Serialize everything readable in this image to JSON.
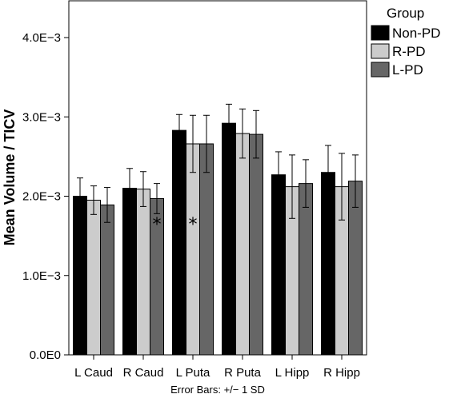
{
  "chart_data": {
    "type": "bar",
    "categories": [
      "L Caud",
      "R Caud",
      "L Puta",
      "R Puta",
      "L Hipp",
      "R Hipp"
    ],
    "series": [
      {
        "name": "Non-PD",
        "color": "#000000",
        "values": [
          0.002,
          0.0021,
          0.00283,
          0.00292,
          0.00227,
          0.0023
        ],
        "sd": [
          0.00023,
          0.00025,
          0.0002,
          0.00024,
          0.00029,
          0.00034
        ]
      },
      {
        "name": "R-PD",
        "color": "#cccccc",
        "values": [
          0.00195,
          0.00209,
          0.00266,
          0.00279,
          0.00212,
          0.00212
        ],
        "sd": [
          0.00018,
          0.00022,
          0.00036,
          0.00031,
          0.0004,
          0.00042
        ]
      },
      {
        "name": "L-PD",
        "color": "#666666",
        "values": [
          0.00189,
          0.00197,
          0.00266,
          0.00278,
          0.00216,
          0.00219
        ],
        "sd": [
          0.00022,
          0.00019,
          0.00036,
          0.0003,
          0.0003,
          0.00033
        ]
      }
    ],
    "ylabel": "Mean Volume / TICV",
    "xlabel": "",
    "ylim": [
      0,
      0.0045
    ],
    "yticks": [
      0,
      0.001,
      0.002,
      0.003,
      0.004
    ],
    "ytick_labels": [
      "0.0E0",
      "1.0E−3",
      "2.0E−3",
      "3.0E−3",
      "4.0E−3"
    ],
    "legend_title": "Group",
    "legend_position": "right",
    "footnote": "Error Bars: +/− 1 SD",
    "annotations": [
      {
        "text": "*",
        "category": "R Caud",
        "series": "L-PD",
        "y": 0.00165
      },
      {
        "text": "*",
        "category": "L Puta",
        "series": "R-PD",
        "y": 0.00165
      }
    ],
    "grid": false
  }
}
